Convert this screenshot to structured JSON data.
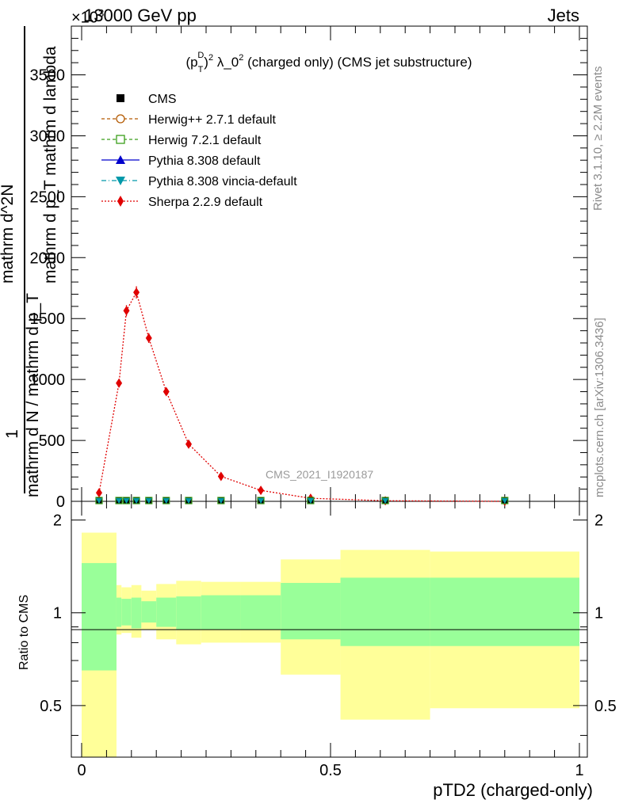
{
  "header": {
    "energy_label": "13000 GeV pp",
    "jets_label": "Jets",
    "exponent_label": "×10^3"
  },
  "side_labels": {
    "rivet": "Rivet 3.1.10, ≥ 2.2M events",
    "mcplots": "mcplots.cern.ch [arXiv:1306.3436]"
  },
  "main_panel": {
    "title": "(p_T^D)^2 λ_0^2 (charged only) (CMS jet substructure)",
    "ylabel_numerator": "mathrm d^2N",
    "ylabel_denominator": "mathrm d p_T mathrm d lambda",
    "ylabel_prefix_numerator": "1",
    "ylabel_prefix_denominator": "mathrm d N / mathrm d p_T",
    "watermark": "CMS_2021_I1920187",
    "ytick_labels": [
      "0",
      "500",
      "1000",
      "1500",
      "2000",
      "2500",
      "3000",
      "3500"
    ]
  },
  "ratio_panel": {
    "ylabel": "Ratio to CMS",
    "ytick_labels": [
      "0.5",
      "1",
      "2"
    ],
    "xtick_labels": [
      "0",
      "0.5",
      "1"
    ],
    "xlabel": "pTD2 (charged-only)"
  },
  "legend": [
    {
      "name": "CMS",
      "color": "#000000",
      "marker": "square",
      "line": "none"
    },
    {
      "name": "Herwig++ 2.7.1 default",
      "color": "#b35900",
      "marker": "open-circle",
      "line": "dashed"
    },
    {
      "name": "Herwig 7.2.1 default",
      "color": "#3a9e1a",
      "marker": "open-square",
      "line": "dashed"
    },
    {
      "name": "Pythia 8.308 default",
      "color": "#0000cc",
      "marker": "triangle-up",
      "line": "solid"
    },
    {
      "name": "Pythia 8.308 vincia-default",
      "color": "#0099aa",
      "marker": "triangle-down",
      "line": "dashdot"
    },
    {
      "name": "Sherpa 2.2.9 default",
      "color": "#e00000",
      "marker": "diamond",
      "line": "dotted"
    }
  ],
  "chart_data": {
    "type": "line",
    "x_label": "pTD2 (charged-only)",
    "xlim": [
      0,
      1
    ],
    "main_ylim": [
      0,
      3900
    ],
    "ratio_ylim": [
      0.34,
      2.3
    ],
    "ratio_scale": "log",
    "bin_edges": [
      0,
      0.07,
      0.08,
      0.1,
      0.12,
      0.15,
      0.19,
      0.24,
      0.32,
      0.4,
      0.52,
      0.7,
      1.0
    ],
    "bin_centers": [
      0.035,
      0.075,
      0.09,
      0.11,
      0.135,
      0.17,
      0.215,
      0.28,
      0.36,
      0.46,
      0.61,
      0.85
    ],
    "series": [
      {
        "name": "Sherpa 2.2.9 default",
        "values": [
          70,
          970,
          1565,
          1715,
          1340,
          900,
          470,
          205,
          90,
          25,
          5,
          0
        ],
        "errors": [
          20,
          35,
          45,
          50,
          40,
          30,
          20,
          15,
          10,
          5,
          3,
          2
        ]
      },
      {
        "name": "CMS",
        "values": [
          0,
          0,
          0,
          0,
          0,
          0,
          0,
          0,
          0,
          0,
          0,
          0
        ]
      },
      {
        "name": "Pythia 8.308 vincia-default",
        "values": [
          0,
          0,
          0,
          0,
          0,
          0,
          0,
          0,
          0,
          0,
          0,
          0
        ]
      },
      {
        "name": "Herwig 7.2.1 default",
        "values": [
          0,
          0,
          0,
          0,
          0,
          0,
          0,
          0,
          0,
          0,
          0,
          0
        ]
      }
    ],
    "ratio_bands": {
      "edges": [
        0,
        0.07,
        0.08,
        0.1,
        0.12,
        0.15,
        0.19,
        0.24,
        0.32,
        0.4,
        0.52,
        0.7,
        1.0
      ],
      "inner_up": [
        1.45,
        1.12,
        1.11,
        1.12,
        1.09,
        1.12,
        1.13,
        1.14,
        1.14,
        1.25,
        1.3,
        1.3
      ],
      "inner_down": [
        0.65,
        0.9,
        0.91,
        0.89,
        0.93,
        0.9,
        0.88,
        0.88,
        0.88,
        0.82,
        0.78,
        0.78
      ],
      "outer_up": [
        1.82,
        1.23,
        1.21,
        1.23,
        1.18,
        1.24,
        1.27,
        1.26,
        1.26,
        1.49,
        1.6,
        1.58
      ],
      "outer_down": [
        0.34,
        0.85,
        0.86,
        0.83,
        0.88,
        0.82,
        0.79,
        0.8,
        0.8,
        0.63,
        0.45,
        0.49
      ],
      "inner_color": "#99ff99",
      "outer_color": "#ffff99"
    }
  }
}
